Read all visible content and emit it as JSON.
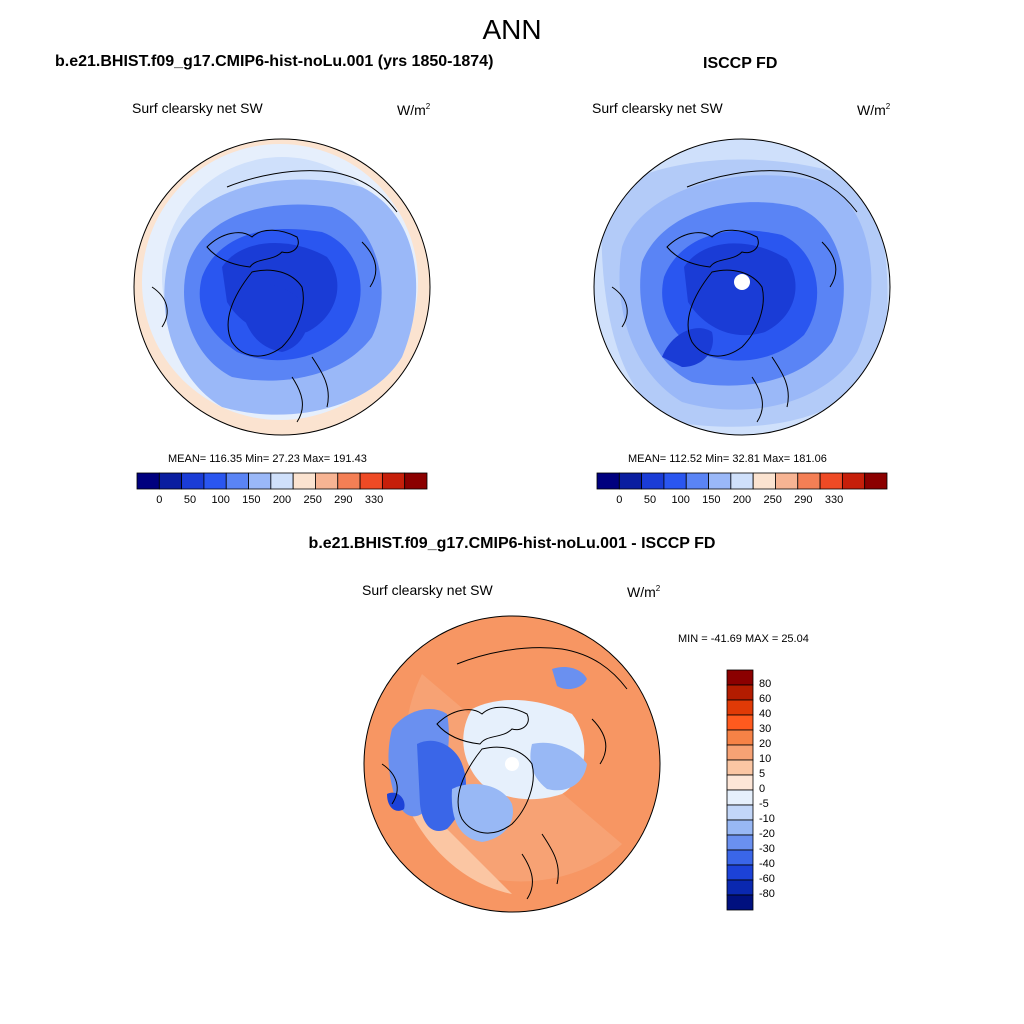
{
  "main_title": "ANN",
  "panels": {
    "model": {
      "title": "b.e21.BHIST.f09_g17.CMIP6-hist-noLu.001 (yrs 1850-1874)",
      "variable": "Surf clearsky net SW",
      "units": "W/m",
      "units_sup": "2",
      "stats": "MEAN= 116.35  Min=  27.23  Max= 191.43",
      "colorbar_labels": [
        "0",
        "50",
        "100",
        "150",
        "200",
        "250",
        "290",
        "330"
      ]
    },
    "obs": {
      "title": "ISCCP FD",
      "variable": "Surf clearsky net SW",
      "units": "W/m",
      "units_sup": "2",
      "stats": "MEAN= 112.52  Min=  32.81  Max= 181.06",
      "colorbar_labels": [
        "0",
        "50",
        "100",
        "150",
        "200",
        "250",
        "290",
        "330"
      ]
    },
    "diff": {
      "title": "b.e21.BHIST.f09_g17.CMIP6-hist-noLu.001 - ISCCP FD",
      "variable": "Surf clearsky net SW",
      "units": "W/m",
      "units_sup": "2",
      "stats": "MIN = -41.69 MAX =  25.04",
      "colorbar_labels": [
        "80",
        "60",
        "40",
        "30",
        "20",
        "10",
        "5",
        "0",
        "-5",
        "-10",
        "-20",
        "-30",
        "-40",
        "-60",
        "-80"
      ]
    }
  },
  "colors": {
    "field_scale": [
      "#00007f",
      "#0a1ea0",
      "#1a3cd6",
      "#2a56f0",
      "#5a84f5",
      "#9ab8f8",
      "#cfe0fb",
      "#fbe3d0",
      "#f7b493",
      "#f47f55",
      "#ee4a25",
      "#c61f0a",
      "#8b0000"
    ],
    "diff_scale": [
      "#8b0000",
      "#b31c00",
      "#e03a06",
      "#ff5a1e",
      "#f68246",
      "#f7a274",
      "#fbc6a3",
      "#fde6d7",
      "#e6f0fc",
      "#c2d6f8",
      "#98b8f5",
      "#6a90f0",
      "#3a66e8",
      "#1c42d8",
      "#0a28b0",
      "#00107f"
    ],
    "land_outline": "#000000"
  },
  "chart_data": [
    {
      "type": "heatmap",
      "title": "b.e21.BHIST.f09_g17.CMIP6-hist-noLu.001 (yrs 1850-1874)",
      "variable": "Surf clearsky net SW",
      "units": "W/m2",
      "projection": "north polar stereographic",
      "mean": 116.35,
      "min": 27.23,
      "max": 191.43,
      "contour_levels": [
        0,
        25,
        50,
        75,
        100,
        125,
        150,
        175,
        200,
        225,
        250,
        290,
        330
      ]
    },
    {
      "type": "heatmap",
      "title": "ISCCP FD",
      "variable": "Surf clearsky net SW",
      "units": "W/m2",
      "projection": "north polar stereographic",
      "mean": 112.52,
      "min": 32.81,
      "max": 181.06,
      "contour_levels": [
        0,
        25,
        50,
        75,
        100,
        125,
        150,
        175,
        200,
        225,
        250,
        290,
        330
      ]
    },
    {
      "type": "heatmap",
      "title": "b.e21.BHIST.f09_g17.CMIP6-hist-noLu.001 - ISCCP FD",
      "variable": "Surf clearsky net SW",
      "units": "W/m2",
      "projection": "north polar stereographic",
      "min": -41.69,
      "max": 25.04,
      "contour_levels": [
        -80,
        -60,
        -40,
        -30,
        -20,
        -10,
        -5,
        0,
        5,
        10,
        20,
        30,
        40,
        60,
        80
      ]
    }
  ]
}
